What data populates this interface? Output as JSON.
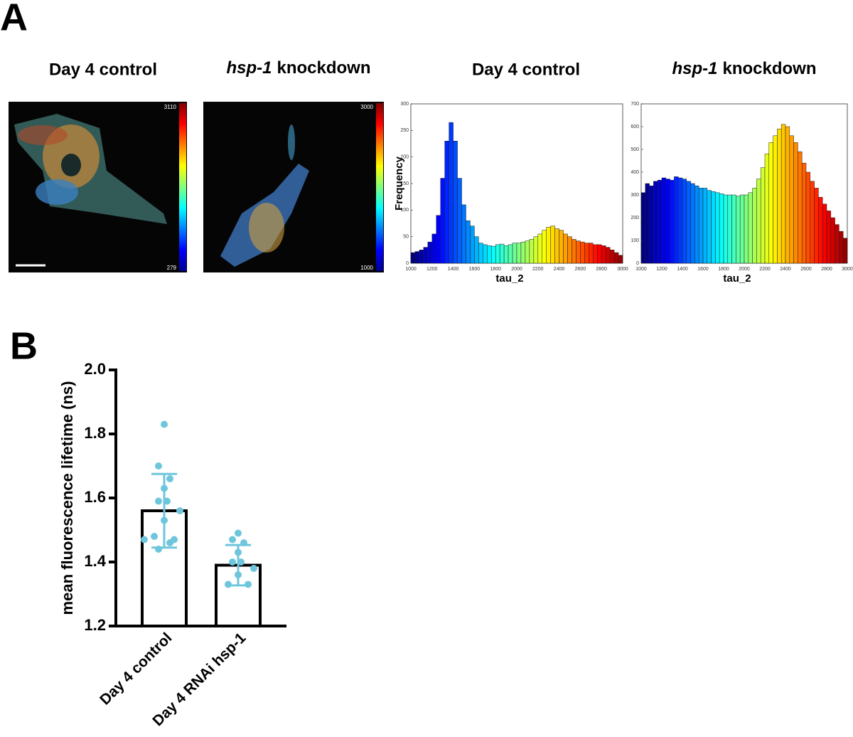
{
  "panel_labels": [
    "A",
    "B"
  ],
  "images": [
    {
      "title": "Day 4 control",
      "scale_max": "3110",
      "scale_min": "279"
    },
    {
      "gene": "hsp-1",
      "title": "knockdown",
      "scale_max": "3000",
      "scale_min": "1000"
    }
  ],
  "chart_data": [
    {
      "type": "histogram",
      "title": "Day 4 control",
      "xlabel": "tau_2",
      "ylabel": "Frequency",
      "colormap": "jet",
      "bins": [
        1000,
        1040,
        1080,
        1120,
        1160,
        1200,
        1240,
        1280,
        1320,
        1360,
        1400,
        1440,
        1480,
        1520,
        1560,
        1600,
        1640,
        1680,
        1720,
        1760,
        1800,
        1840,
        1880,
        1920,
        1960,
        2000,
        2040,
        2080,
        2120,
        2160,
        2200,
        2240,
        2280,
        2320,
        2360,
        2400,
        2440,
        2480,
        2520,
        2560,
        2600,
        2640,
        2680,
        2720,
        2760,
        2800,
        2840,
        2880,
        2920,
        2960,
        3000
      ],
      "values": [
        20,
        22,
        25,
        30,
        40,
        55,
        90,
        160,
        230,
        265,
        230,
        160,
        110,
        80,
        70,
        50,
        38,
        35,
        33,
        32,
        35,
        36,
        33,
        35,
        38,
        38,
        40,
        42,
        45,
        50,
        55,
        62,
        68,
        70,
        65,
        62,
        55,
        50,
        45,
        42,
        40,
        38,
        38,
        35,
        35,
        33,
        30,
        25,
        20,
        15
      ],
      "xlim": [
        1000,
        3000
      ],
      "xticks": [
        1000,
        1200,
        1400,
        1600,
        1800,
        2000,
        2200,
        2400,
        2600,
        2800,
        3000
      ],
      "ylim": [
        0,
        300
      ],
      "yticks": [
        0,
        50,
        100,
        150,
        200,
        250,
        300
      ]
    },
    {
      "type": "histogram",
      "gene": "hsp-1",
      "title": "knockdown",
      "xlabel": "tau_2",
      "colormap": "jet",
      "bins": [
        1000,
        1040,
        1080,
        1120,
        1160,
        1200,
        1240,
        1280,
        1320,
        1360,
        1400,
        1440,
        1480,
        1520,
        1560,
        1600,
        1640,
        1680,
        1720,
        1760,
        1800,
        1840,
        1880,
        1920,
        1960,
        2000,
        2040,
        2080,
        2120,
        2160,
        2200,
        2240,
        2280,
        2320,
        2360,
        2400,
        2440,
        2480,
        2520,
        2560,
        2600,
        2640,
        2680,
        2720,
        2760,
        2800,
        2840,
        2880,
        2920,
        2960,
        3000
      ],
      "values": [
        310,
        350,
        340,
        360,
        365,
        375,
        370,
        365,
        380,
        375,
        370,
        360,
        350,
        340,
        330,
        330,
        320,
        315,
        310,
        305,
        300,
        300,
        300,
        295,
        300,
        300,
        310,
        330,
        370,
        420,
        480,
        530,
        560,
        590,
        610,
        600,
        560,
        530,
        490,
        440,
        400,
        360,
        330,
        290,
        260,
        230,
        200,
        170,
        140,
        110
      ],
      "xlim": [
        1000,
        3000
      ],
      "xticks": [
        1000,
        1200,
        1400,
        1600,
        1800,
        2000,
        2200,
        2400,
        2600,
        2800,
        3000
      ],
      "ylim": [
        0,
        700
      ],
      "yticks": [
        0,
        100,
        200,
        300,
        400,
        500,
        600,
        700
      ]
    },
    {
      "type": "bar",
      "ylabel": "mean fluorescence lifetime (ns)",
      "color": "#6ec6dc",
      "categories": [
        "Day 4 control",
        "Day 4 RNAi hsp-1"
      ],
      "values": [
        1.56,
        1.39
      ],
      "errors": [
        0.115,
        0.063
      ],
      "points": [
        [
          1.83,
          1.7,
          1.66,
          1.63,
          1.59,
          1.59,
          1.56,
          1.53,
          1.48,
          1.47,
          1.47,
          1.46,
          1.44
        ],
        [
          1.49,
          1.47,
          1.46,
          1.43,
          1.4,
          1.4,
          1.38,
          1.36,
          1.33,
          1.33
        ]
      ],
      "ylim": [
        1.2,
        2.0
      ],
      "yticks": [
        1.2,
        1.4,
        1.6,
        1.8,
        {
          "value": 2.0,
          "label": "2.0"
        }
      ]
    }
  ]
}
